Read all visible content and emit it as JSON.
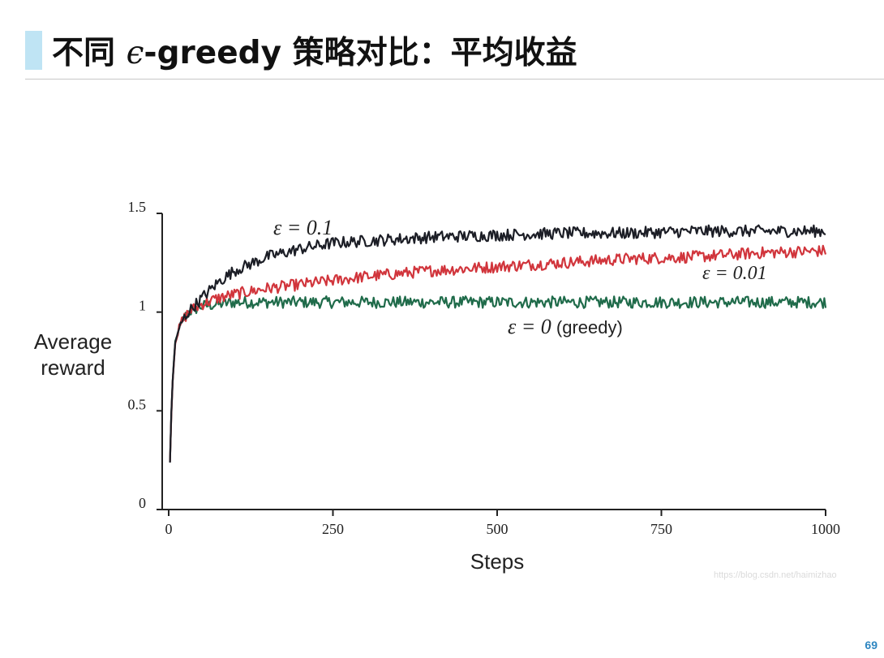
{
  "slide": {
    "title_prefix": "不同 ",
    "title_eps": "ϵ",
    "title_suffix": "-greedy 策略对比：平均收益",
    "page_number": "69"
  },
  "watermark": "https://blog.csdn.net/haimizhao",
  "chart_data": {
    "type": "line",
    "xlabel": "Steps",
    "ylabel_lines": [
      "Average",
      "reward"
    ],
    "xlim": [
      0,
      1000
    ],
    "ylim": [
      0,
      1.5
    ],
    "x_ticks": [
      0,
      250,
      500,
      750,
      1000
    ],
    "x_tick_labels": [
      "0",
      "250",
      "500",
      "750",
      "1000"
    ],
    "y_ticks": [
      0,
      0.5,
      1,
      1.5
    ],
    "y_tick_labels": [
      "0",
      "0.5",
      "1",
      "1.5"
    ],
    "grid": false,
    "legend": "inline labels next to curves",
    "series": [
      {
        "name": "ε = 0.1",
        "label_math": "ε = 0.1",
        "label_text": "",
        "color": "#1c1e26",
        "x": [
          0,
          5,
          10,
          20,
          30,
          50,
          75,
          100,
          150,
          200,
          250,
          300,
          400,
          500,
          600,
          700,
          800,
          900,
          1000
        ],
        "values": [
          0.0,
          0.6,
          0.85,
          0.95,
          1.0,
          1.07,
          1.15,
          1.21,
          1.28,
          1.32,
          1.35,
          1.36,
          1.38,
          1.39,
          1.4,
          1.4,
          1.41,
          1.41,
          1.41
        ]
      },
      {
        "name": "ε = 0.01",
        "label_math": "ε = 0.01",
        "label_text": "",
        "color": "#d1353c",
        "x": [
          0,
          5,
          10,
          20,
          30,
          50,
          75,
          100,
          150,
          200,
          250,
          300,
          400,
          500,
          600,
          700,
          800,
          900,
          1000
        ],
        "values": [
          0.0,
          0.6,
          0.85,
          0.95,
          1.0,
          1.04,
          1.07,
          1.09,
          1.12,
          1.14,
          1.16,
          1.18,
          1.21,
          1.23,
          1.25,
          1.27,
          1.28,
          1.3,
          1.31
        ]
      },
      {
        "name": "ε = 0 (greedy)",
        "label_math": "ε = 0",
        "label_text": " (greedy)",
        "color": "#1f6b4a",
        "x": [
          0,
          5,
          10,
          20,
          30,
          50,
          75,
          100,
          150,
          200,
          250,
          300,
          400,
          500,
          600,
          700,
          800,
          900,
          1000
        ],
        "values": [
          0.0,
          0.6,
          0.85,
          0.95,
          1.0,
          1.03,
          1.04,
          1.05,
          1.05,
          1.05,
          1.05,
          1.05,
          1.05,
          1.05,
          1.05,
          1.05,
          1.05,
          1.05,
          1.05
        ]
      }
    ]
  }
}
